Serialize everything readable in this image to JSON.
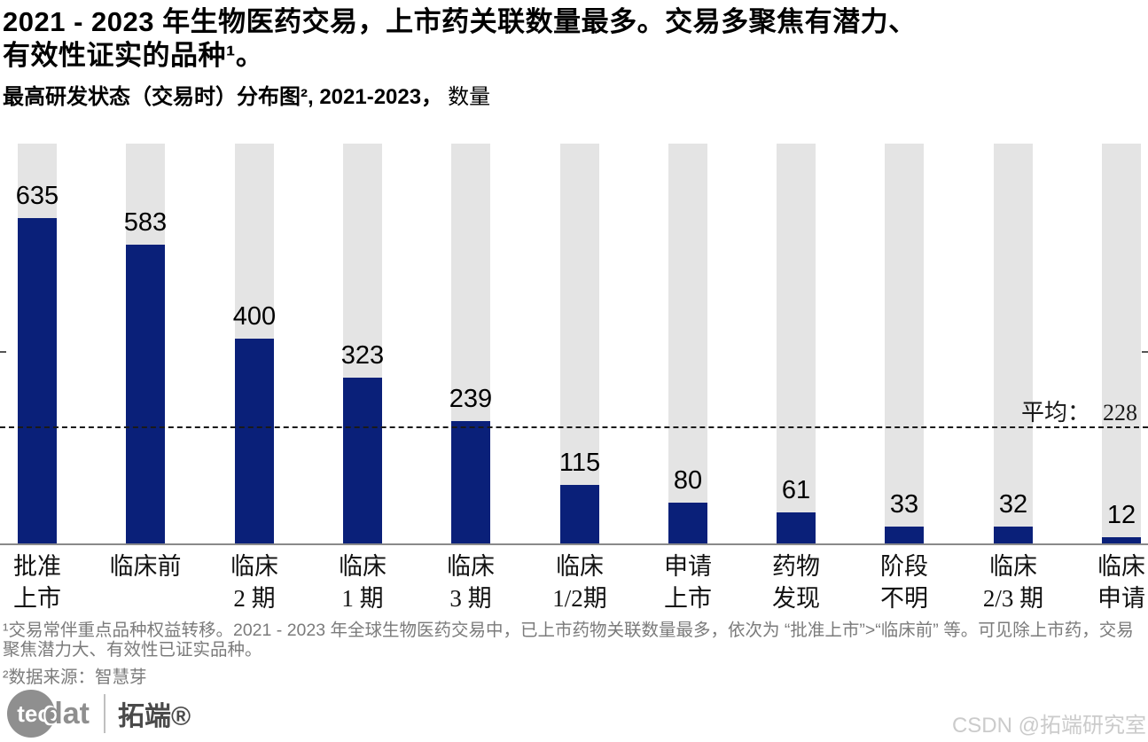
{
  "header": {
    "title_line1": "2021 - 2023 年生物医药交易，上市药关联数量最多。交易多聚焦有潜力、",
    "title_line2": "有效性证实的品种¹。",
    "subtitle_bold": "最高研发状态（交易时）分布图², 2021-2023，",
    "subtitle_regular": "数量"
  },
  "chart_data": {
    "type": "bar",
    "title": "最高研发状态（交易时）分布图, 2021-2023, 数量",
    "categories": [
      [
        "批准",
        "上市"
      ],
      [
        "临床前"
      ],
      [
        "临床",
        "2 期"
      ],
      [
        "临床",
        "1 期"
      ],
      [
        "临床",
        "3 期"
      ],
      [
        "临床",
        "1/2期"
      ],
      [
        "申请",
        "上市"
      ],
      [
        "药物",
        "发现"
      ],
      [
        "阶段",
        "不明"
      ],
      [
        "临床",
        "2/3 期"
      ],
      [
        "临床",
        "申请"
      ]
    ],
    "values": [
      635,
      583,
      400,
      323,
      239,
      115,
      80,
      61,
      33,
      32,
      12
    ],
    "average": {
      "label": "平均：",
      "value": 228
    },
    "xlabel": "最高研发状态（交易时）",
    "ylabel": "数量",
    "ylim": [
      0,
      780
    ],
    "grid": false,
    "legend": false,
    "bar_color": "#0a2079",
    "track_color": "#e4e4e4"
  },
  "footnotes": {
    "note1": "¹交易常伴重点品种权益转移。2021 - 2023 年全球生物医药交易中，已上市药物关联数量最多，依次为 “批准上市”>“临床前” 等。可见除上市药，交易聚焦潜力大、有效性已证实品种。",
    "note2": "²数据来源：智慧芽"
  },
  "branding": {
    "logo_tec": "tec",
    "logo_dat": "dat",
    "logo_brand": "拓端®",
    "watermark": "CSDN @拓端研究室"
  }
}
